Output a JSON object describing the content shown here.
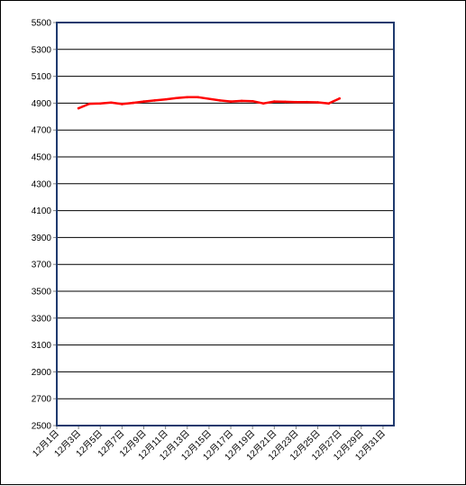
{
  "chart_data": {
    "type": "line",
    "title": "",
    "xlabel": "",
    "ylabel": "",
    "ylim": [
      2500,
      5500
    ],
    "yticks": [
      2500,
      2700,
      2900,
      3100,
      3300,
      3500,
      3700,
      3900,
      4100,
      4300,
      4500,
      4700,
      4900,
      5100,
      5300,
      5500
    ],
    "grid": true,
    "categories": [
      "12月1日",
      "12月3日",
      "12月5日",
      "12月7日",
      "12月9日",
      "12月11日",
      "12月13日",
      "12月15日",
      "12月17日",
      "12月19日",
      "12月21日",
      "12月23日",
      "12月25日",
      "12月27日",
      "12月29日",
      "12月31日"
    ],
    "series": [
      {
        "color": "#ff0000",
        "x": [
          3,
          4,
          5,
          6,
          7,
          8,
          9,
          10,
          11,
          12,
          13,
          14,
          16,
          17,
          18,
          19,
          20,
          21,
          22,
          23,
          24,
          25,
          26,
          27
        ],
        "values": [
          4862,
          4895,
          4897,
          4904,
          4893,
          4902,
          4912,
          4920,
          4928,
          4938,
          4944,
          4944,
          4920,
          4912,
          4917,
          4915,
          4898,
          4912,
          4910,
          4908,
          4908,
          4906,
          4897,
          4935
        ]
      }
    ],
    "colors": {
      "grid": "#000000",
      "plot_border": "#1f3a6e",
      "axis": "#808080"
    }
  }
}
